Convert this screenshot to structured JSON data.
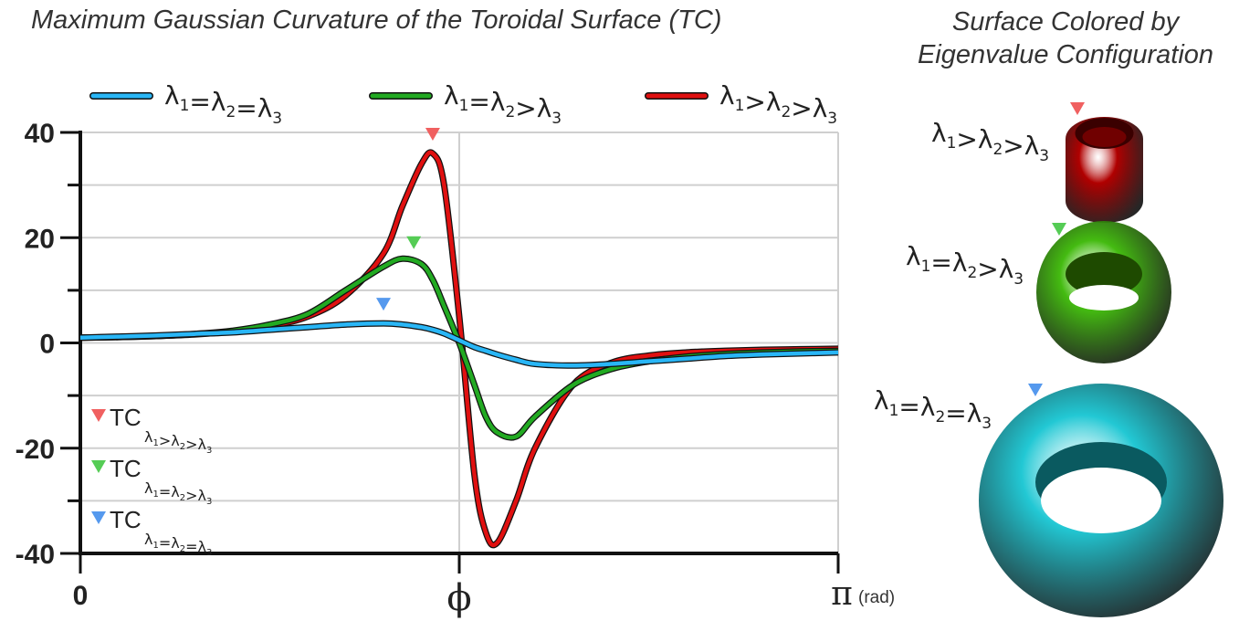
{
  "main_title": "Maximum Gaussian Curvature of the Toroidal Surface (TC)",
  "side_title_line1": "Surface Colored by",
  "side_title_line2": "Eigenvalue Configuration",
  "colors": {
    "equal_all": "#29b6f6",
    "two_equal": "#22aa22",
    "all_distinct": "#e01010",
    "marker_red": "#f06060",
    "marker_green": "#55cc55",
    "marker_blue": "#5599ee",
    "torus_red": "#b00000",
    "torus_green": "#44bb11",
    "torus_cyan": "#22c8d4"
  },
  "chart_data": {
    "type": "line",
    "title": "Maximum Gaussian Curvature of the Toroidal Surface (TC)",
    "xlabel": "",
    "ylabel": "",
    "x_ticks": [
      "0",
      "ϕ",
      "π"
    ],
    "x_unit": "(rad)",
    "y_ticks": [
      40,
      20,
      0,
      -20,
      -40
    ],
    "ylim": [
      -40,
      40
    ],
    "grid": true,
    "legend_placement": "top",
    "x": [
      0,
      0.05,
      0.1,
      0.15,
      0.2,
      0.25,
      0.3,
      0.35,
      0.4,
      0.425,
      0.45,
      0.465,
      0.48,
      0.5,
      0.52,
      0.535,
      0.55,
      0.575,
      0.6,
      0.65,
      0.7,
      0.75,
      0.8,
      0.85,
      0.9,
      0.95,
      1.0
    ],
    "series": [
      {
        "name": "λ1=λ2=λ3",
        "color_key": "equal_all",
        "values": [
          1.0,
          1.2,
          1.4,
          1.7,
          2.0,
          2.5,
          3.0,
          3.5,
          3.7,
          3.5,
          3.0,
          2.5,
          1.8,
          0.5,
          -0.8,
          -1.5,
          -2.2,
          -3.2,
          -4.0,
          -4.3,
          -4.0,
          -3.5,
          -3.0,
          -2.5,
          -2.2,
          -2.0,
          -1.8
        ]
      },
      {
        "name": "λ1=λ2>λ3",
        "color_key": "two_equal",
        "values": [
          1.0,
          1.1,
          1.3,
          1.7,
          2.3,
          3.5,
          5.5,
          10.0,
          14.5,
          16.0,
          15.0,
          12.0,
          7.0,
          0.0,
          -8.0,
          -14.0,
          -17.0,
          -17.8,
          -14.0,
          -8.0,
          -5.0,
          -3.5,
          -2.6,
          -2.1,
          -1.8,
          -1.6,
          -1.5
        ]
      },
      {
        "name": "λ1>λ2>λ3",
        "color_key": "all_distinct",
        "values": [
          1.0,
          1.1,
          1.3,
          1.6,
          2.2,
          3.2,
          5.0,
          9.0,
          17.0,
          26.0,
          34.0,
          36.0,
          30.0,
          5.0,
          -25.0,
          -36.0,
          -38.0,
          -30.0,
          -20.0,
          -8.0,
          -3.8,
          -2.4,
          -1.8,
          -1.5,
          -1.3,
          -1.2,
          -1.1
        ]
      }
    ],
    "markers": [
      {
        "series": "λ1>λ2>λ3",
        "x": 0.465,
        "color_key": "marker_red"
      },
      {
        "series": "λ1=λ2>λ3",
        "x": 0.44,
        "color_key": "marker_green"
      },
      {
        "series": "λ1=λ2=λ3",
        "x": 0.4,
        "color_key": "marker_blue"
      }
    ],
    "marker_legend": [
      {
        "prefix": "TC",
        "sub": "λ1>λ2>λ3",
        "color_key": "marker_red"
      },
      {
        "prefix": "TC",
        "sub": "λ1=λ2>λ3",
        "color_key": "marker_green"
      },
      {
        "prefix": "TC",
        "sub": "λ1=λ2=λ3",
        "color_key": "marker_blue"
      }
    ]
  },
  "tori": [
    {
      "label": "λ1>λ2>λ3",
      "color_key": "torus_red",
      "marker_key": "marker_red"
    },
    {
      "label": "λ1=λ2>λ3",
      "color_key": "torus_green",
      "marker_key": "marker_green"
    },
    {
      "label": "λ1=λ2=λ3",
      "color_key": "torus_cyan",
      "marker_key": "marker_blue"
    }
  ]
}
